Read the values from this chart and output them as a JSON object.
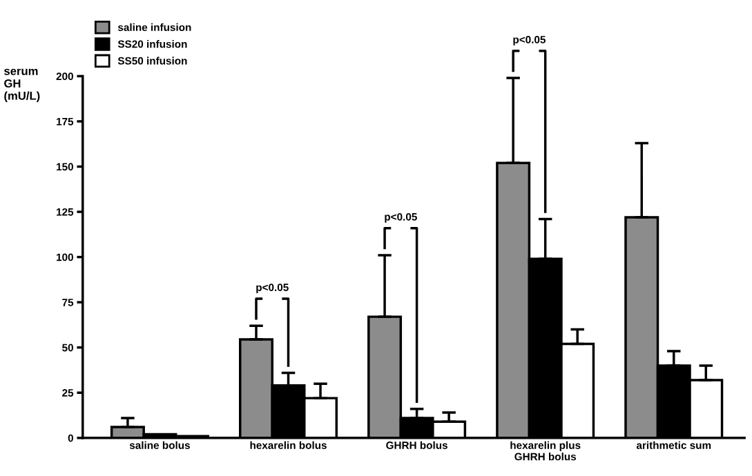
{
  "chart_data": {
    "type": "bar",
    "categories": [
      "saline bolus",
      "hexarelin bolus",
      "GHRH bolus",
      "hexarelin plus\nGHRH bolus",
      "arithmetic sum"
    ],
    "ylabel": "serum\nGH\n(mU/L)",
    "series": [
      {
        "name": "saline infusion",
        "color": "#8c8c8c",
        "values": [
          6,
          54.5,
          67,
          152,
          122
        ],
        "errors": [
          [
            6,
            11
          ],
          [
            54.5,
            62
          ],
          [
            67,
            101
          ],
          [
            152,
            199
          ],
          [
            122,
            163
          ]
        ]
      },
      {
        "name": "SS20 infusion",
        "color": "#000000",
        "values": [
          2,
          29,
          11,
          99,
          40
        ],
        "errors": [
          null,
          [
            29,
            36
          ],
          [
            11,
            16
          ],
          [
            99,
            121
          ],
          [
            40,
            48
          ]
        ]
      },
      {
        "name": "SS50 infusion",
        "color": "#ffffff",
        "values": [
          1,
          22,
          9,
          52,
          32
        ],
        "errors": [
          null,
          [
            22,
            30
          ],
          [
            9,
            14
          ],
          [
            52,
            60
          ],
          [
            32,
            40
          ]
        ]
      }
    ],
    "ylim": [
      0,
      200
    ],
    "yticks": [
      0,
      25,
      50,
      75,
      100,
      125,
      150,
      175,
      200
    ],
    "annotations": [
      "p<0.05",
      "p<0.05",
      "p<0.05"
    ],
    "grid": false,
    "legend": "top left"
  }
}
